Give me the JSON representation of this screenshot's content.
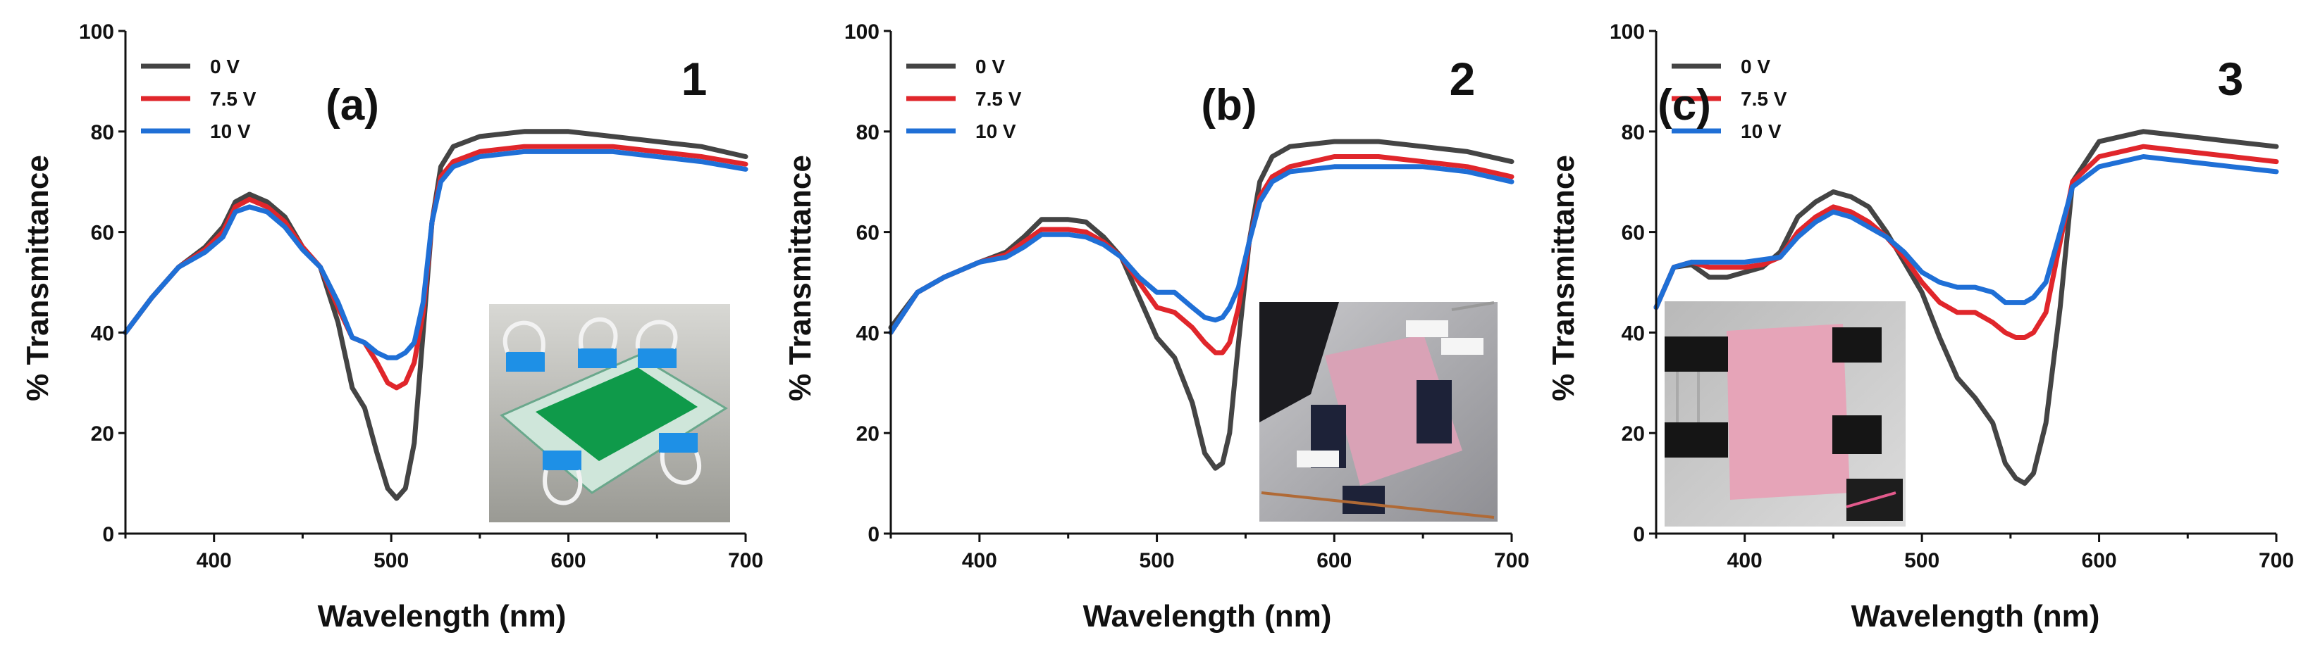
{
  "chart_data": [
    {
      "type": "line",
      "panel_label": "(a)",
      "panel_number": "1",
      "xlabel": "Wavelength (nm)",
      "ylabel": "% Transmittance",
      "xlim": [
        350,
        700
      ],
      "ylim": [
        0,
        100
      ],
      "xticks": [
        "400",
        "500",
        "600",
        "700"
      ],
      "yticks": [
        "0",
        "20",
        "40",
        "60",
        "80",
        "100"
      ],
      "legend_position": "top-left",
      "inset": "photo of green electrochromic device held with binder clips",
      "series": [
        {
          "name": "0 V",
          "color": "#444444",
          "x": [
            350,
            365,
            380,
            395,
            405,
            412,
            420,
            430,
            440,
            450,
            460,
            470,
            478,
            485,
            492,
            498,
            503,
            508,
            513,
            518,
            523,
            528,
            535,
            550,
            575,
            600,
            625,
            650,
            675,
            700
          ],
          "y": [
            40,
            47,
            53,
            57,
            61,
            66,
            67.5,
            66,
            63,
            57,
            53,
            42,
            29,
            25,
            16,
            9,
            7,
            9,
            18,
            40,
            62,
            73,
            77,
            79,
            80,
            80,
            79,
            78,
            77,
            75
          ]
        },
        {
          "name": "7.5 V",
          "color": "#e0262b",
          "x": [
            350,
            365,
            380,
            395,
            405,
            412,
            420,
            430,
            440,
            450,
            460,
            470,
            478,
            485,
            492,
            498,
            503,
            508,
            513,
            518,
            523,
            528,
            535,
            550,
            575,
            600,
            625,
            650,
            675,
            700
          ],
          "y": [
            40,
            47,
            53,
            56.5,
            60,
            65,
            66.5,
            65,
            62,
            57,
            53,
            45,
            39,
            38,
            34,
            30,
            29,
            30,
            34,
            44,
            62,
            71,
            74,
            76,
            77,
            77,
            77,
            76,
            75,
            73.5
          ]
        },
        {
          "name": "10 V",
          "color": "#1f6fd6",
          "x": [
            350,
            365,
            380,
            395,
            405,
            412,
            420,
            430,
            440,
            450,
            460,
            470,
            478,
            485,
            492,
            498,
            503,
            508,
            513,
            518,
            523,
            528,
            535,
            550,
            575,
            600,
            625,
            650,
            675,
            700
          ],
          "y": [
            40,
            47,
            53,
            56,
            59,
            64,
            65,
            64,
            61,
            56.5,
            53,
            46,
            39,
            38,
            36,
            35,
            35,
            36,
            38,
            46,
            62,
            70,
            73,
            75,
            76,
            76,
            76,
            75,
            74,
            72.5
          ]
        }
      ]
    },
    {
      "type": "line",
      "panel_label": "(b)",
      "panel_number": "2",
      "xlabel": "Wavelength (nm)",
      "ylabel": "% Transmittance",
      "xlim": [
        350,
        700
      ],
      "ylim": [
        0,
        100
      ],
      "xticks": [
        "400",
        "500",
        "600",
        "700"
      ],
      "yticks": [
        "0",
        "20",
        "40",
        "60",
        "80",
        "100"
      ],
      "legend_position": "top-left",
      "inset": "photo of pink electrochromic device held with binder clips",
      "series": [
        {
          "name": "0 V",
          "color": "#444444",
          "x": [
            350,
            365,
            380,
            400,
            415,
            425,
            435,
            450,
            460,
            470,
            480,
            490,
            500,
            510,
            520,
            527,
            533,
            537,
            541,
            546,
            552,
            558,
            565,
            575,
            600,
            625,
            650,
            675,
            700
          ],
          "y": [
            41,
            48,
            51,
            54,
            56,
            59,
            62.5,
            62.5,
            62,
            59,
            55,
            47,
            39,
            35,
            26,
            16,
            13,
            14,
            20,
            38,
            58,
            70,
            75,
            77,
            78,
            78,
            77,
            76,
            74
          ]
        },
        {
          "name": "7.5 V",
          "color": "#e0262b",
          "x": [
            350,
            365,
            380,
            400,
            415,
            425,
            435,
            450,
            460,
            470,
            480,
            490,
            500,
            510,
            520,
            527,
            533,
            537,
            541,
            546,
            552,
            558,
            565,
            575,
            600,
            625,
            650,
            675,
            700
          ],
          "y": [
            40,
            48,
            51,
            54,
            55.5,
            58,
            60.5,
            60.5,
            60,
            58,
            55,
            50,
            45,
            44,
            41,
            38,
            36,
            36,
            38,
            45,
            58,
            67,
            71,
            73,
            75,
            75,
            74,
            73,
            71
          ]
        },
        {
          "name": "10 V",
          "color": "#1f6fd6",
          "x": [
            350,
            365,
            380,
            400,
            415,
            425,
            435,
            450,
            460,
            470,
            480,
            490,
            500,
            510,
            520,
            527,
            533,
            537,
            541,
            546,
            552,
            558,
            565,
            575,
            600,
            625,
            650,
            675,
            700
          ],
          "y": [
            40,
            48,
            51,
            54,
            55,
            57,
            59.5,
            59.5,
            59,
            57.5,
            55,
            51,
            48,
            48,
            45,
            43,
            42.5,
            43,
            45,
            49,
            58,
            66,
            70,
            72,
            73,
            73,
            73,
            72,
            70
          ]
        }
      ]
    },
    {
      "type": "line",
      "panel_label": "(c)",
      "panel_number": "3",
      "xlabel": "Wavelength (nm)",
      "ylabel": "% Transmittance",
      "xlim": [
        350,
        700
      ],
      "ylim": [
        0,
        100
      ],
      "xticks": [
        "400",
        "500",
        "600",
        "700"
      ],
      "yticks": [
        "0",
        "20",
        "40",
        "60",
        "80",
        "100"
      ],
      "legend_position": "top-left",
      "inset": "photo of pink device clamped with black binder clips",
      "series": [
        {
          "name": "0 V",
          "color": "#444444",
          "x": [
            350,
            360,
            370,
            380,
            390,
            400,
            410,
            420,
            430,
            440,
            450,
            460,
            470,
            480,
            490,
            500,
            510,
            520,
            530,
            540,
            547,
            553,
            558,
            563,
            570,
            578,
            585,
            600,
            625,
            650,
            675,
            700
          ],
          "y": [
            45,
            53,
            53.5,
            51,
            51,
            52,
            53,
            56,
            63,
            66,
            68,
            67,
            65,
            60,
            54,
            48,
            39,
            31,
            27,
            22,
            14,
            11,
            10,
            12,
            22,
            45,
            70,
            78,
            80,
            79,
            78,
            77
          ]
        },
        {
          "name": "7.5 V",
          "color": "#e0262b",
          "x": [
            350,
            360,
            370,
            380,
            390,
            400,
            410,
            420,
            430,
            440,
            450,
            460,
            470,
            480,
            490,
            500,
            510,
            520,
            530,
            540,
            547,
            553,
            558,
            563,
            570,
            578,
            585,
            600,
            625,
            650,
            675,
            700
          ],
          "y": [
            45,
            53,
            54,
            53,
            53,
            53,
            53.5,
            55,
            60,
            63,
            65,
            64,
            62,
            59,
            55,
            50,
            46,
            44,
            44,
            42,
            40,
            39,
            39,
            40,
            44,
            58,
            70,
            75,
            77,
            76,
            75,
            74
          ]
        },
        {
          "name": "10 V",
          "color": "#1f6fd6",
          "x": [
            350,
            360,
            370,
            380,
            390,
            400,
            410,
            420,
            430,
            440,
            450,
            460,
            470,
            480,
            490,
            500,
            510,
            520,
            530,
            540,
            547,
            553,
            558,
            563,
            570,
            578,
            585,
            600,
            625,
            650,
            675,
            700
          ],
          "y": [
            45,
            53,
            54,
            54,
            54,
            54,
            54.5,
            55,
            59,
            62,
            64,
            63,
            61,
            59,
            56,
            52,
            50,
            49,
            49,
            48,
            46,
            46,
            46,
            47,
            50,
            60,
            69,
            73,
            75,
            74,
            73,
            72
          ]
        }
      ]
    }
  ]
}
